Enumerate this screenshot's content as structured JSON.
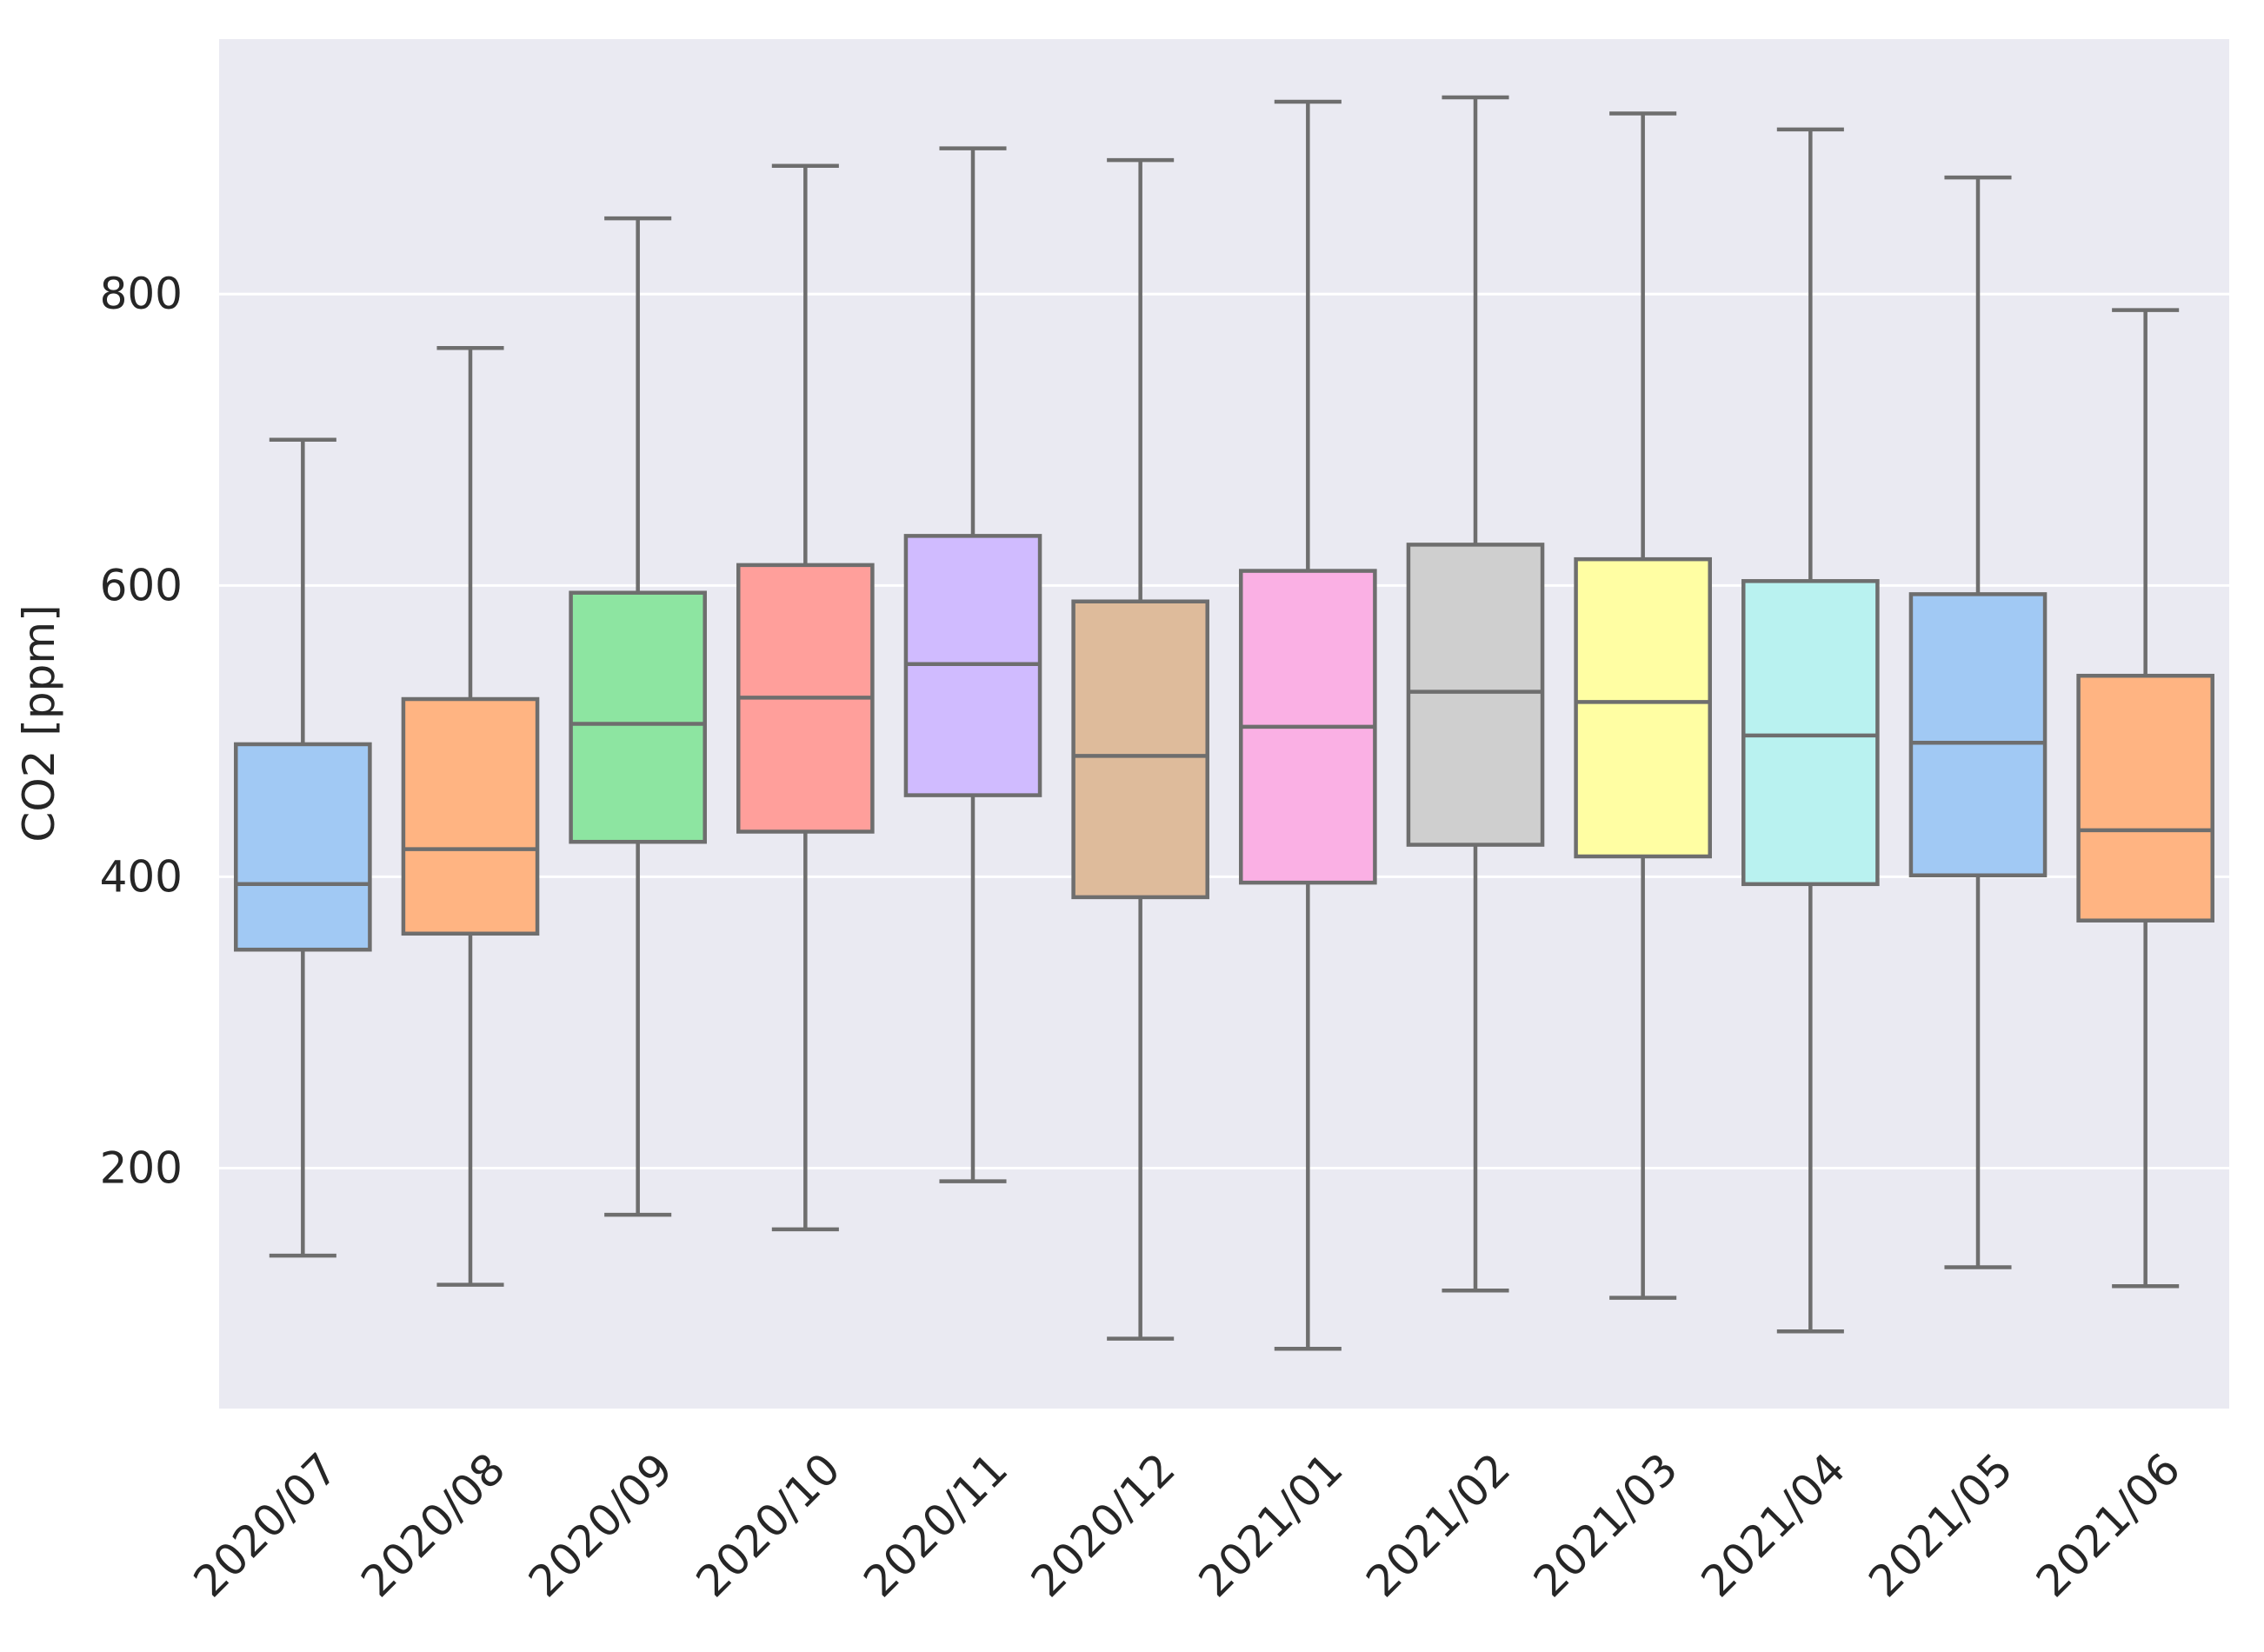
{
  "chart_data": {
    "type": "box",
    "title": "",
    "xlabel": "",
    "ylabel": "CO2 [ppm]",
    "ylim": [
      35,
      975
    ],
    "yticks": [
      200,
      400,
      600,
      800
    ],
    "grid": true,
    "categories": [
      "2020/07",
      "2020/08",
      "2020/09",
      "2020/10",
      "2020/11",
      "2020/12",
      "2021/01",
      "2021/02",
      "2021/03",
      "2021/04",
      "2021/05",
      "2021/06"
    ],
    "boxes": [
      {
        "min": 140,
        "q1": 350,
        "median": 395,
        "q3": 491,
        "max": 700
      },
      {
        "min": 120,
        "q1": 361,
        "median": 419,
        "q3": 522,
        "max": 763
      },
      {
        "min": 168,
        "q1": 424,
        "median": 505,
        "q3": 595,
        "max": 852
      },
      {
        "min": 158,
        "q1": 431,
        "median": 523,
        "q3": 614,
        "max": 888
      },
      {
        "min": 191,
        "q1": 456,
        "median": 546,
        "q3": 634,
        "max": 900
      },
      {
        "min": 83,
        "q1": 386,
        "median": 483,
        "q3": 589,
        "max": 892
      },
      {
        "min": 76,
        "q1": 396,
        "median": 503,
        "q3": 610,
        "max": 932
      },
      {
        "min": 116,
        "q1": 422,
        "median": 527,
        "q3": 628,
        "max": 935
      },
      {
        "min": 111,
        "q1": 414,
        "median": 520,
        "q3": 618,
        "max": 924
      },
      {
        "min": 88,
        "q1": 395,
        "median": 497,
        "q3": 603,
        "max": 913
      },
      {
        "min": 132,
        "q1": 401,
        "median": 492,
        "q3": 594,
        "max": 880
      },
      {
        "min": 119,
        "q1": 370,
        "median": 432,
        "q3": 538,
        "max": 789
      }
    ],
    "colors": [
      "#a1c9f4",
      "#ffb482",
      "#8de5a1",
      "#ff9f9b",
      "#d0bbff",
      "#debb9b",
      "#fab0e4",
      "#cfcfcf",
      "#fffea3",
      "#b9f2f0",
      "#a1c9f4",
      "#ffb482"
    ],
    "background": "#eaeaf2",
    "grid_color": "#ffffff",
    "line_color": "#6e6e6e"
  }
}
